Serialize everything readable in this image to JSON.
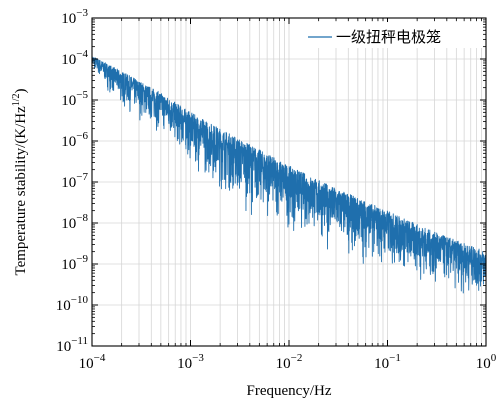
{
  "chart_data": {
    "type": "line",
    "xscale": "log",
    "yscale": "log",
    "xlim": [
      0.0001,
      1
    ],
    "ylim": [
      1e-11,
      0.001
    ],
    "xlabel": "Frequency/Hz",
    "ylabel": "Temperature stability/(K/Hz",
    "ylabel_superscript": "1/2",
    "ylabel_close": ")",
    "grid": true,
    "legend_position": "top-right",
    "x_ticks": [
      {
        "value": 0.0001,
        "base": "10",
        "exp": "−4"
      },
      {
        "value": 0.001,
        "base": "10",
        "exp": "−3"
      },
      {
        "value": 0.01,
        "base": "10",
        "exp": "−2"
      },
      {
        "value": 0.1,
        "base": "10",
        "exp": "−1"
      },
      {
        "value": 1,
        "base": "10",
        "exp": "0"
      }
    ],
    "y_ticks": [
      {
        "value": 0.001,
        "base": "10",
        "exp": "−3"
      },
      {
        "value": 0.0001,
        "base": "10",
        "exp": "−4"
      },
      {
        "value": 1e-05,
        "base": "10",
        "exp": "−5"
      },
      {
        "value": 1e-06,
        "base": "10",
        "exp": "−6"
      },
      {
        "value": 1e-07,
        "base": "10",
        "exp": "−7"
      },
      {
        "value": 1e-08,
        "base": "10",
        "exp": "−8"
      },
      {
        "value": 1e-09,
        "base": "10",
        "exp": "−9"
      },
      {
        "value": 1e-10,
        "base": "10",
        "exp": "−10"
      },
      {
        "value": 1e-11,
        "base": "10",
        "exp": "−11"
      }
    ],
    "series": [
      {
        "name": "一级扭秤电极笼",
        "color": "#1f6fad",
        "envelope": {
          "x": [
            0.0001,
            0.0002,
            0.0005,
            0.001,
            0.003,
            0.01,
            0.03,
            0.1,
            0.3,
            1
          ],
          "upper": [
            0.00012,
            5e-05,
            1.5e-05,
            5e-06,
            1.2e-06,
            2.5e-07,
            7e-08,
            2e-08,
            6e-09,
            2e-09
          ],
          "lower": [
            5e-05,
            5e-06,
            1.2e-06,
            2e-07,
            2e-08,
            5e-09,
            1.5e-09,
            5e-10,
            2e-10,
            1e-10
          ]
        }
      }
    ]
  }
}
